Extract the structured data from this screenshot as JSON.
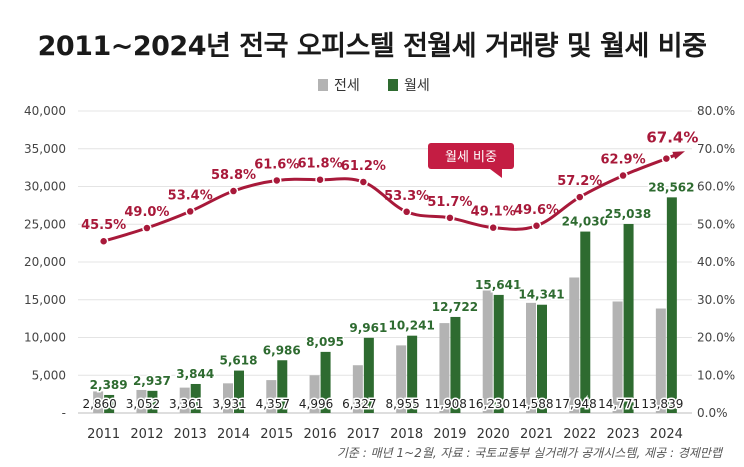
{
  "chart_data": {
    "type": "bar",
    "title": "2011~2024년 전국 오피스텔 전월세 거래량 및 월세 비중",
    "source": "기준 : 매년 1~2월, 자료 : 국토교통부 실거래가 공개시스템, 제공 : 경제만랩",
    "categories": [
      "2011",
      "2012",
      "2013",
      "2014",
      "2015",
      "2016",
      "2017",
      "2018",
      "2019",
      "2020",
      "2021",
      "2022",
      "2023",
      "2024"
    ],
    "series": [
      {
        "name": "전세",
        "type": "bar",
        "axis": "left",
        "color": "#b3b3b3",
        "values": [
          2860,
          3052,
          3361,
          3931,
          4357,
          4996,
          6327,
          8955,
          11908,
          16230,
          14588,
          17948,
          14771,
          13839
        ],
        "labels": [
          "2,860",
          "3,052",
          "3,361",
          "3,931",
          "4,357",
          "4,996",
          "6,327",
          "8,955",
          "11,908",
          "16,230",
          "14,588",
          "17,948",
          "14,771",
          "13,839"
        ]
      },
      {
        "name": "월세",
        "type": "bar",
        "axis": "left",
        "color": "#2e6b30",
        "values": [
          2389,
          2937,
          3844,
          5618,
          6986,
          8095,
          9961,
          10241,
          12722,
          15641,
          14341,
          24030,
          25038,
          28562
        ],
        "labels": [
          "2,389",
          "2,937",
          "3,844",
          "5,618",
          "6,986",
          "8,095",
          "9,961",
          "10,241",
          "12,722",
          "15,641",
          "14,341",
          "24,030",
          "25,038",
          "28,562"
        ]
      },
      {
        "name": "월세 비중",
        "type": "line",
        "axis": "right",
        "color": "#a8193a",
        "values": [
          45.5,
          49.0,
          53.4,
          58.8,
          61.6,
          61.8,
          61.2,
          53.3,
          51.7,
          49.1,
          49.6,
          57.2,
          62.9,
          67.4
        ],
        "labels": [
          "45.5%",
          "49.0%",
          "53.4%",
          "58.8%",
          "61.6%",
          "61.8%",
          "61.2%",
          "53.3%",
          "51.7%",
          "49.1%",
          "49.6%",
          "57.2%",
          "62.9%",
          "67.4%"
        ]
      }
    ],
    "ylim": [
      0,
      40000
    ],
    "y_ticks": [
      "-",
      "5,000",
      "10,000",
      "15,000",
      "20,000",
      "25,000",
      "30,000",
      "35,000",
      "40,000"
    ],
    "y2lim": [
      0,
      80
    ],
    "y2_ticks": [
      "0.0%",
      "10.0%",
      "20.0%",
      "30.0%",
      "40.0%",
      "50.0%",
      "60.0%",
      "70.0%",
      "80.0%"
    ],
    "legend": {
      "position": "top-center",
      "items": [
        {
          "label": "전세",
          "color": "#b3b3b3"
        },
        {
          "label": "월세",
          "color": "#2e6b30"
        }
      ]
    },
    "annotation": {
      "text": "월세 비중",
      "color": "#c41d43"
    },
    "grid": true
  }
}
